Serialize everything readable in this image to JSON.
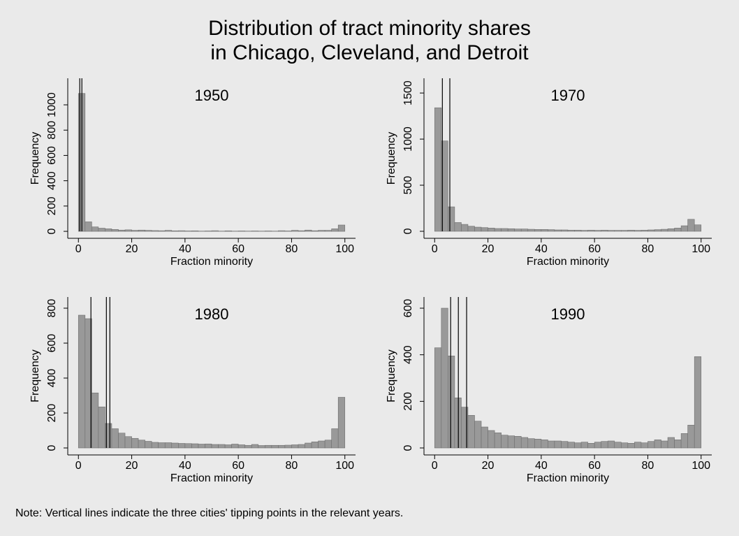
{
  "title": [
    "Distribution of tract minority shares",
    "in Chicago, Cleveland, and Detroit"
  ],
  "note": "Note:  Vertical lines indicate the three cities' tipping points in the relevant years.",
  "chart_data": [
    {
      "type": "histogram",
      "title": "1950",
      "xlabel": "Fraction minority",
      "ylabel": "Frequency",
      "color": "#999999",
      "bins": [
        0,
        2.5,
        5,
        7.5,
        10,
        12.5,
        15,
        17.5,
        20,
        22.5,
        25,
        27.5,
        30,
        32.5,
        35,
        37.5,
        40,
        42.5,
        45,
        47.5,
        50,
        52.5,
        55,
        57.5,
        60,
        62.5,
        65,
        67.5,
        70,
        72.5,
        75,
        77.5,
        80,
        82.5,
        85,
        87.5,
        90,
        92.5,
        95,
        97.5,
        100
      ],
      "counts": [
        1090,
        75,
        35,
        25,
        20,
        15,
        10,
        12,
        8,
        10,
        8,
        6,
        5,
        8,
        4,
        5,
        3,
        4,
        2,
        3,
        5,
        2,
        4,
        2,
        3,
        2,
        3,
        2,
        3,
        2,
        5,
        3,
        8,
        5,
        10,
        5,
        8,
        8,
        20,
        50
      ],
      "vlines": [
        0.5,
        1.3
      ],
      "xlim": [
        -4,
        104
      ],
      "ylim": [
        -55,
        1210
      ],
      "xticks": [
        0,
        20,
        40,
        60,
        80,
        100
      ],
      "yticks": [
        0,
        200,
        400,
        600,
        800,
        1000
      ]
    },
    {
      "type": "histogram",
      "title": "1970",
      "xlabel": "Fraction minority",
      "ylabel": "Frequency",
      "color": "#999999",
      "bins": [
        0,
        2.5,
        5,
        7.5,
        10,
        12.5,
        15,
        17.5,
        20,
        22.5,
        25,
        27.5,
        30,
        32.5,
        35,
        37.5,
        40,
        42.5,
        45,
        47.5,
        50,
        52.5,
        55,
        57.5,
        60,
        62.5,
        65,
        67.5,
        70,
        72.5,
        75,
        77.5,
        80,
        82.5,
        85,
        87.5,
        90,
        92.5,
        95,
        97.5,
        100
      ],
      "counts": [
        1340,
        980,
        265,
        95,
        75,
        55,
        45,
        40,
        35,
        30,
        30,
        28,
        25,
        25,
        22,
        20,
        20,
        18,
        15,
        15,
        12,
        12,
        10,
        12,
        10,
        12,
        10,
        10,
        10,
        12,
        10,
        12,
        15,
        18,
        22,
        28,
        35,
        60,
        130,
        70
      ],
      "vlines": [
        2.9,
        5.7
      ],
      "xlim": [
        -4,
        104
      ],
      "ylim": [
        -76,
        1660
      ],
      "xticks": [
        0,
        20,
        40,
        60,
        80,
        100
      ],
      "yticks": [
        0,
        500,
        1000,
        1500
      ]
    },
    {
      "type": "histogram",
      "title": "1980",
      "xlabel": "Fraction minority",
      "ylabel": "Frequency",
      "color": "#999999",
      "bins": [
        0,
        2.5,
        5,
        7.5,
        10,
        12.5,
        15,
        17.5,
        20,
        22.5,
        25,
        27.5,
        30,
        32.5,
        35,
        37.5,
        40,
        42.5,
        45,
        47.5,
        50,
        52.5,
        55,
        57.5,
        60,
        62.5,
        65,
        67.5,
        70,
        72.5,
        75,
        77.5,
        80,
        82.5,
        85,
        87.5,
        90,
        92.5,
        95,
        97.5,
        100
      ],
      "counts": [
        760,
        740,
        315,
        235,
        140,
        110,
        85,
        65,
        55,
        45,
        38,
        32,
        30,
        30,
        28,
        26,
        25,
        24,
        22,
        23,
        20,
        20,
        18,
        22,
        18,
        15,
        20,
        14,
        15,
        15,
        15,
        16,
        18,
        20,
        28,
        35,
        40,
        45,
        110,
        290
      ],
      "vlines": [
        4.7,
        10.5,
        11.8
      ],
      "xlim": [
        -4,
        104
      ],
      "ylim": [
        -40,
        864
      ],
      "xticks": [
        0,
        20,
        40,
        60,
        80,
        100
      ],
      "yticks": [
        0,
        200,
        400,
        600,
        800
      ]
    },
    {
      "type": "histogram",
      "title": "1990",
      "xlabel": "Fraction minority",
      "ylabel": "Frequency",
      "color": "#999999",
      "bins": [
        0,
        2.5,
        5,
        7.5,
        10,
        12.5,
        15,
        17.5,
        20,
        22.5,
        25,
        27.5,
        30,
        32.5,
        35,
        37.5,
        40,
        42.5,
        45,
        47.5,
        50,
        52.5,
        55,
        57.5,
        60,
        62.5,
        65,
        67.5,
        70,
        72.5,
        75,
        77.5,
        80,
        82.5,
        85,
        87.5,
        90,
        92.5,
        95,
        97.5,
        100
      ],
      "counts": [
        430,
        600,
        395,
        215,
        175,
        140,
        115,
        90,
        75,
        65,
        55,
        52,
        50,
        45,
        40,
        38,
        35,
        30,
        30,
        28,
        25,
        22,
        25,
        20,
        25,
        28,
        30,
        25,
        22,
        20,
        25,
        22,
        28,
        35,
        30,
        45,
        35,
        62,
        98,
        392
      ],
      "vlines": [
        6.0,
        8.9,
        12.0
      ],
      "xlim": [
        -4,
        104
      ],
      "ylim": [
        -30,
        648
      ],
      "xticks": [
        0,
        20,
        40,
        60,
        80,
        100
      ],
      "yticks": [
        0,
        200,
        400,
        600
      ]
    }
  ]
}
